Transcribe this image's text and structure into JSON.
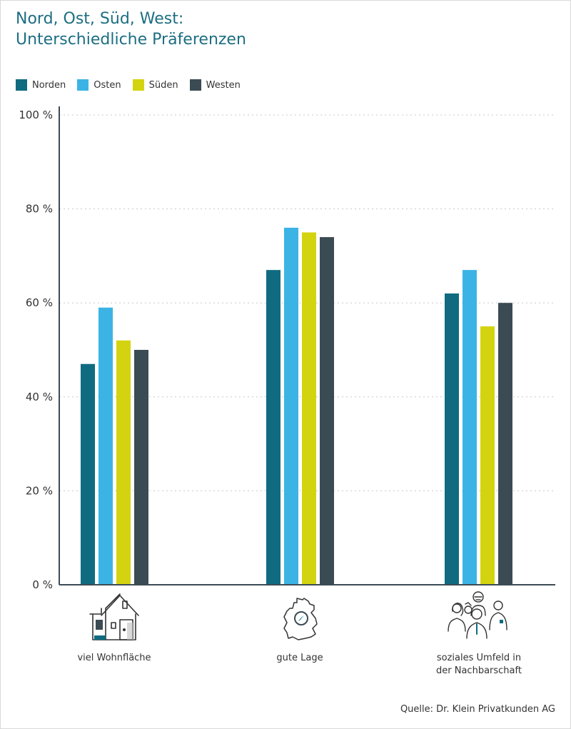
{
  "header": {
    "title_line1": "Nord, Ost, Süd, West:",
    "title_line2": "Unterschiedliche Präferenzen"
  },
  "source": "Quelle: Dr. Klein Privatkunden AG",
  "colors": {
    "title": "#1d6e82",
    "axis": "#3c4c54",
    "grid": "#c8c8c8"
  },
  "icons": [
    "house-icon",
    "germany-map-icon",
    "people-icon"
  ],
  "chart_data": {
    "type": "bar",
    "categories": [
      "viel Wohnfläche",
      "gute Lage",
      "soziales Umfeld in der Nachbarschaft"
    ],
    "category_label_lines": [
      [
        "viel Wohnfläche"
      ],
      [
        "gute Lage"
      ],
      [
        "soziales Umfeld in",
        "der Nachbarschaft"
      ]
    ],
    "series": [
      {
        "name": "Norden",
        "color": "#106b81",
        "values": [
          47,
          67,
          62
        ]
      },
      {
        "name": "Osten",
        "color": "#3bb4e5",
        "values": [
          59,
          76,
          67
        ]
      },
      {
        "name": "Süden",
        "color": "#d4d30f",
        "values": [
          52,
          75,
          55
        ]
      },
      {
        "name": "Westen",
        "color": "#3b4b53",
        "values": [
          50,
          74,
          60
        ]
      }
    ],
    "ylim": [
      0,
      100
    ],
    "yticks": [
      0,
      20,
      40,
      60,
      80,
      100
    ],
    "ytick_labels": [
      "0 %",
      "20 %",
      "40 %",
      "60 %",
      "80 %",
      "100 %"
    ],
    "grid": true,
    "legend": "top-left"
  }
}
